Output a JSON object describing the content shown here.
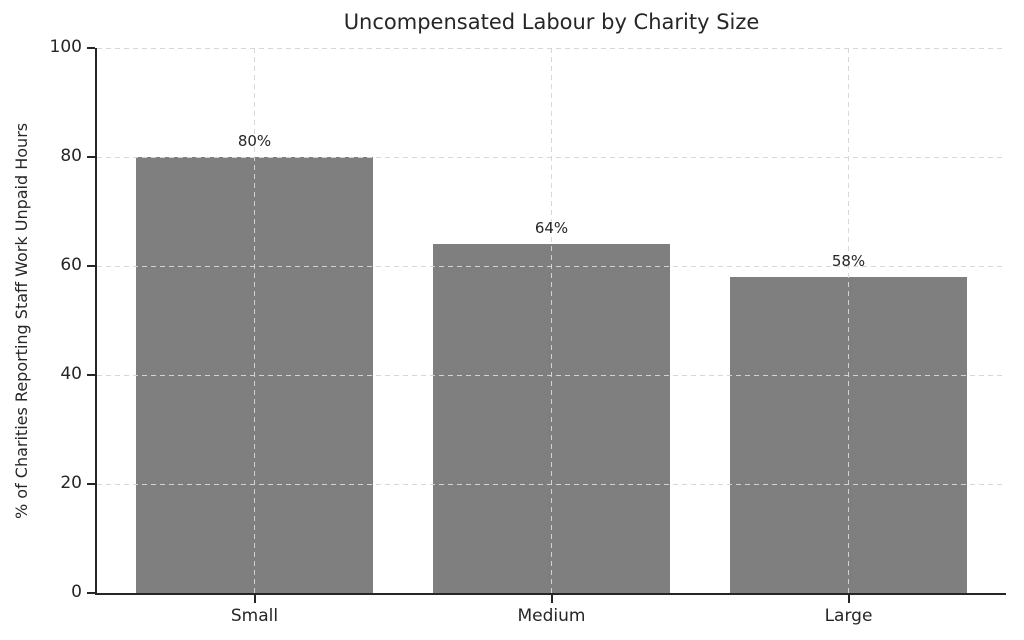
{
  "figure": {
    "background": "#ffffff"
  },
  "chart_data": {
    "type": "bar",
    "title": "Uncompensated Labour by Charity Size",
    "categories": [
      "Small",
      "Medium",
      "Large"
    ],
    "values": [
      80,
      64,
      58
    ],
    "bar_labels": [
      "80%",
      "64%",
      "58%"
    ],
    "xlabel": "",
    "ylabel": "% of Charities Reporting Staff Work Unpaid Hours",
    "ylim": [
      0,
      100
    ],
    "yticks": [
      0,
      20,
      40,
      60,
      80,
      100
    ],
    "ytick_labels": [
      "0",
      "20",
      "40",
      "60",
      "80",
      "100"
    ],
    "grid": true,
    "grid_style": "dashed",
    "grid_axes": "both",
    "legend_position": "none",
    "colors": {
      "bar": "#7f7f7f",
      "grid": "#d6d6d6",
      "axis": "#262626",
      "text": "#262626",
      "background": "#ffffff"
    }
  }
}
